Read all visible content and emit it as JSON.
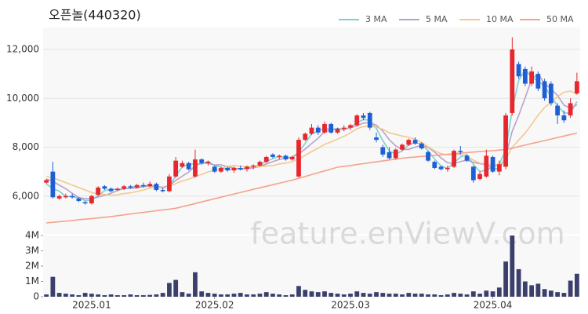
{
  "chart_data": {
    "type": "candlestick",
    "title": "오픈놀(440320)",
    "watermark": "feature.enViewV.com",
    "categories": [
      null,
      null,
      null,
      null,
      null,
      null,
      null,
      "2025.01",
      null,
      null,
      null,
      null,
      null,
      null,
      null,
      null,
      null,
      null,
      null,
      null,
      null,
      null,
      null,
      null,
      null,
      null,
      "2025.02",
      null,
      null,
      null,
      null,
      null,
      null,
      null,
      null,
      null,
      null,
      null,
      null,
      null,
      null,
      null,
      null,
      null,
      null,
      null,
      null,
      "2025.03",
      null,
      null,
      null,
      null,
      null,
      null,
      null,
      null,
      null,
      null,
      null,
      null,
      null,
      null,
      null,
      null,
      null,
      null,
      null,
      null,
      null,
      "2025.04",
      null,
      null,
      null,
      null,
      null,
      null,
      null,
      null,
      null,
      null,
      null,
      null,
      null
    ],
    "open": [
      6550,
      7000,
      5900,
      5950,
      6000,
      5900,
      5750,
      5700,
      6050,
      6400,
      6300,
      6250,
      6300,
      6400,
      6350,
      6450,
      6400,
      6500,
      6250,
      6200,
      6800,
      7200,
      7350,
      6800,
      7500,
      7350,
      7200,
      7000,
      7150,
      7050,
      7150,
      7100,
      7200,
      7250,
      7400,
      7700,
      7600,
      7650,
      7500,
      6800,
      8300,
      8550,
      8800,
      8600,
      8950,
      8600,
      8750,
      8800,
      8900,
      9300,
      9400,
      8400,
      8000,
      7800,
      7550,
      7900,
      8100,
      8300,
      8150,
      7800,
      7400,
      7200,
      7100,
      7200,
      7850,
      7650,
      7200,
      6700,
      6800,
      7600,
      7000,
      7200,
      9400,
      11400,
      11200,
      10600,
      11000,
      10700,
      10600,
      9700,
      9300,
      9300,
      10200
    ],
    "high": [
      6700,
      7400,
      6050,
      6100,
      6100,
      5950,
      5800,
      6050,
      6400,
      6450,
      6350,
      6350,
      6450,
      6450,
      6500,
      6550,
      6600,
      6550,
      6350,
      6900,
      7600,
      7450,
      7400,
      7900,
      7550,
      7450,
      7250,
      7200,
      7200,
      7200,
      7250,
      7250,
      7300,
      7450,
      7650,
      7750,
      7700,
      7700,
      7650,
      8400,
      8600,
      8950,
      8900,
      9050,
      9000,
      8800,
      8900,
      8950,
      9350,
      9400,
      9450,
      8600,
      8100,
      8000,
      7950,
      8150,
      8350,
      8400,
      8200,
      7850,
      7450,
      7250,
      7250,
      7900,
      8050,
      7700,
      7250,
      7000,
      7900,
      7650,
      7450,
      9400,
      12500,
      11500,
      11300,
      11300,
      11100,
      10800,
      10700,
      9800,
      9500,
      10000,
      11050
    ],
    "low": [
      6500,
      5900,
      5850,
      5900,
      5900,
      5750,
      5650,
      5650,
      6000,
      6250,
      6150,
      6200,
      6250,
      6300,
      6300,
      6350,
      6350,
      6200,
      6150,
      6150,
      6750,
      7150,
      7050,
      6750,
      7300,
      7250,
      6950,
      6950,
      7000,
      6950,
      7050,
      7000,
      7100,
      7200,
      7350,
      7550,
      7500,
      7450,
      7450,
      6750,
      8250,
      8500,
      8500,
      8550,
      8550,
      8550,
      8650,
      8700,
      8850,
      9100,
      8700,
      8200,
      7600,
      7500,
      7500,
      7850,
      8050,
      8100,
      7900,
      7400,
      7100,
      7050,
      7000,
      7150,
      7700,
      7400,
      6550,
      6650,
      6750,
      6950,
      6850,
      7100,
      9300,
      10800,
      10500,
      10500,
      10300,
      9900,
      9700,
      8950,
      9000,
      9200,
      10150
    ],
    "close": [
      6650,
      5950,
      6000,
      6000,
      5950,
      5800,
      5700,
      6000,
      6350,
      6300,
      6200,
      6300,
      6400,
      6350,
      6450,
      6400,
      6500,
      6250,
      6200,
      6800,
      7450,
      7350,
      7100,
      7500,
      7350,
      7400,
      7000,
      7150,
      7050,
      7150,
      7100,
      7200,
      7250,
      7400,
      7600,
      7600,
      7650,
      7500,
      7600,
      8300,
      8550,
      8800,
      8600,
      8950,
      8600,
      8750,
      8800,
      8900,
      9300,
      9200,
      8800,
      8300,
      7700,
      7550,
      7900,
      8100,
      8300,
      8150,
      7950,
      7450,
      7150,
      7100,
      7150,
      7850,
      7800,
      7450,
      6650,
      6900,
      7650,
      7000,
      7300,
      9300,
      12000,
      10900,
      10600,
      11100,
      10400,
      10000,
      9800,
      9300,
      9100,
      9800,
      10700
    ],
    "up_color": "#e8262d",
    "down_color": "#1f5fd6",
    "ylim": [
      4450,
      12900
    ],
    "yticks": [
      {
        "value": 6000,
        "label": "6,000"
      },
      {
        "value": 8000,
        "label": "8,000"
      },
      {
        "value": 10000,
        "label": "10,000"
      },
      {
        "value": 12000,
        "label": "12,000"
      }
    ],
    "grid": true,
    "moving_averages": [
      {
        "name": "3 MA",
        "color": "#7ecfd4",
        "values": [
          6500,
          6300,
          6200,
          5983,
          5983,
          5917,
          5817,
          5833,
          6017,
          6217,
          6283,
          6267,
          6300,
          6350,
          6400,
          6400,
          6450,
          6383,
          6317,
          6417,
          6817,
          7200,
          7300,
          7317,
          7317,
          7417,
          7250,
          7183,
          7067,
          7117,
          7100,
          7150,
          7183,
          7283,
          7417,
          7533,
          7617,
          7583,
          7583,
          7800,
          8150,
          8550,
          8650,
          8783,
          8717,
          8767,
          8717,
          8817,
          9000,
          9133,
          9100,
          8767,
          8267,
          7850,
          7717,
          7850,
          8100,
          8183,
          8133,
          7850,
          7517,
          7233,
          7133,
          7367,
          7600,
          7700,
          7300,
          7000,
          7067,
          7183,
          7317,
          7867,
          9533,
          10733,
          11167,
          10867,
          10700,
          10500,
          10067,
          9700,
          9400,
          9400,
          9867
        ]
      },
      {
        "name": "5 MA",
        "color": "#b9a1c8",
        "values": [
          6700,
          6600,
          6450,
          6300,
          6110,
          5940,
          5890,
          5890,
          5960,
          6030,
          6110,
          6230,
          6310,
          6310,
          6340,
          6380,
          6420,
          6390,
          6360,
          6430,
          6640,
          6810,
          6980,
          7240,
          7350,
          7340,
          7270,
          7280,
          7190,
          7150,
          7090,
          7130,
          7150,
          7220,
          7310,
          7410,
          7500,
          7550,
          7590,
          7730,
          7920,
          8150,
          8370,
          8640,
          8700,
          8740,
          8740,
          8800,
          8870,
          8990,
          9000,
          8900,
          8660,
          8310,
          8050,
          7910,
          7910,
          8000,
          8080,
          7990,
          7800,
          7560,
          7360,
          7340,
          7410,
          7470,
          7380,
          7330,
          7290,
          7130,
          7100,
          7630,
          8650,
          9300,
          10020,
          10780,
          11000,
          10600,
          10380,
          10120,
          9720,
          9600,
          9740
        ]
      },
      {
        "name": "10 MA",
        "color": "#f2c98f",
        "values": [
          6800,
          6750,
          6650,
          6550,
          6450,
          6350,
          6250,
          6150,
          6080,
          6070,
          6025,
          6060,
          6100,
          6135,
          6185,
          6245,
          6325,
          6350,
          6335,
          6385,
          6510,
          6615,
          6685,
          6800,
          6890,
          6990,
          7040,
          7130,
          7215,
          7250,
          7215,
          7200,
          7215,
          7205,
          7230,
          7250,
          7315,
          7350,
          7405,
          7520,
          7665,
          7825,
          7960,
          8115,
          8215,
          8330,
          8445,
          8585,
          8755,
          8845,
          8870,
          8820,
          8730,
          8590,
          8520,
          8455,
          8405,
          8330,
          8195,
          8020,
          7855,
          7735,
          7680,
          7710,
          7700,
          7635,
          7470,
          7345,
          7315,
          7270,
          7285,
          7505,
          7990,
          8295,
          8575,
          8940,
          9315,
          9625,
          9840,
          10070,
          10250,
          10300,
          10170
        ]
      },
      {
        "name": "50 MA",
        "color": "#f4a38c",
        "values": [
          4900,
          4925,
          4950,
          4975,
          5000,
          5030,
          5055,
          5080,
          5105,
          5130,
          5160,
          5195,
          5230,
          5265,
          5300,
          5330,
          5365,
          5400,
          5435,
          5465,
          5500,
          5565,
          5630,
          5695,
          5760,
          5825,
          5890,
          5955,
          6020,
          6085,
          6150,
          6210,
          6275,
          6340,
          6400,
          6465,
          6525,
          6590,
          6650,
          6725,
          6800,
          6880,
          6955,
          7030,
          7105,
          7180,
          7215,
          7250,
          7290,
          7325,
          7365,
          7400,
          7440,
          7475,
          7510,
          7550,
          7575,
          7595,
          7620,
          7640,
          7665,
          7685,
          7710,
          7730,
          7755,
          7780,
          7800,
          7820,
          7840,
          7860,
          7880,
          7900,
          7960,
          8025,
          8085,
          8150,
          8210,
          8270,
          8335,
          8395,
          8455,
          8520,
          8580
        ]
      }
    ],
    "volume": {
      "color": "#3b3f6b",
      "ylim": [
        0,
        4000000
      ],
      "yticks": [
        0,
        {
          "value": 1000000,
          "label": "1M"
        },
        {
          "value": 2000000,
          "label": "2M"
        },
        {
          "value": 3000000,
          "label": "3M"
        },
        {
          "value": 4000000,
          "label": "4M"
        }
      ],
      "values": [
        150000,
        1300000,
        250000,
        200000,
        150000,
        100000,
        250000,
        200000,
        150000,
        100000,
        150000,
        100000,
        100000,
        150000,
        100000,
        100000,
        120000,
        150000,
        250000,
        900000,
        1100000,
        300000,
        200000,
        1600000,
        350000,
        250000,
        200000,
        150000,
        150000,
        200000,
        250000,
        150000,
        150000,
        200000,
        300000,
        200000,
        150000,
        100000,
        150000,
        700000,
        450000,
        350000,
        300000,
        350000,
        250000,
        200000,
        150000,
        200000,
        350000,
        250000,
        200000,
        300000,
        250000,
        200000,
        200000,
        150000,
        250000,
        200000,
        200000,
        150000,
        150000,
        100000,
        150000,
        250000,
        200000,
        150000,
        350000,
        200000,
        400000,
        350000,
        600000,
        2300000,
        4000000,
        1800000,
        1000000,
        750000,
        850000,
        500000,
        400000,
        300000,
        250000,
        1050000,
        1500000
      ]
    }
  }
}
